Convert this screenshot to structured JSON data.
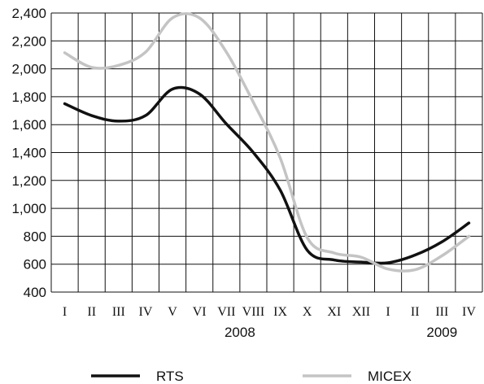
{
  "chart_data": {
    "type": "line",
    "title": "",
    "xlabel": "",
    "ylabel": "",
    "ylim": [
      400,
      2400
    ],
    "yticks": [
      "2,400",
      "2,200",
      "2,000",
      "1,800",
      "1,600",
      "1,400",
      "1,200",
      "1,000",
      "800",
      "600",
      "400"
    ],
    "categories": [
      "I",
      "II",
      "III",
      "IV",
      "V",
      "VI",
      "VII",
      "VIII",
      "IX",
      "X",
      "XI",
      "XII",
      "I",
      "II",
      "III",
      "IV"
    ],
    "year_labels": [
      {
        "label": "2008",
        "index": 6.5
      },
      {
        "label": "2009",
        "index": 14
      }
    ],
    "grid": true,
    "legend_position": "bottom",
    "series": [
      {
        "name": "RTS",
        "color": "#111111",
        "values": [
          1750,
          1665,
          1625,
          1665,
          1855,
          1820,
          1605,
          1400,
          1130,
          700,
          630,
          615,
          610,
          665,
          760,
          895
        ]
      },
      {
        "name": "MICEX",
        "color": "#c4c4c4",
        "values": [
          2115,
          2010,
          2025,
          2120,
          2365,
          2365,
          2120,
          1760,
          1360,
          790,
          680,
          650,
          565,
          560,
          660,
          800
        ]
      }
    ]
  }
}
